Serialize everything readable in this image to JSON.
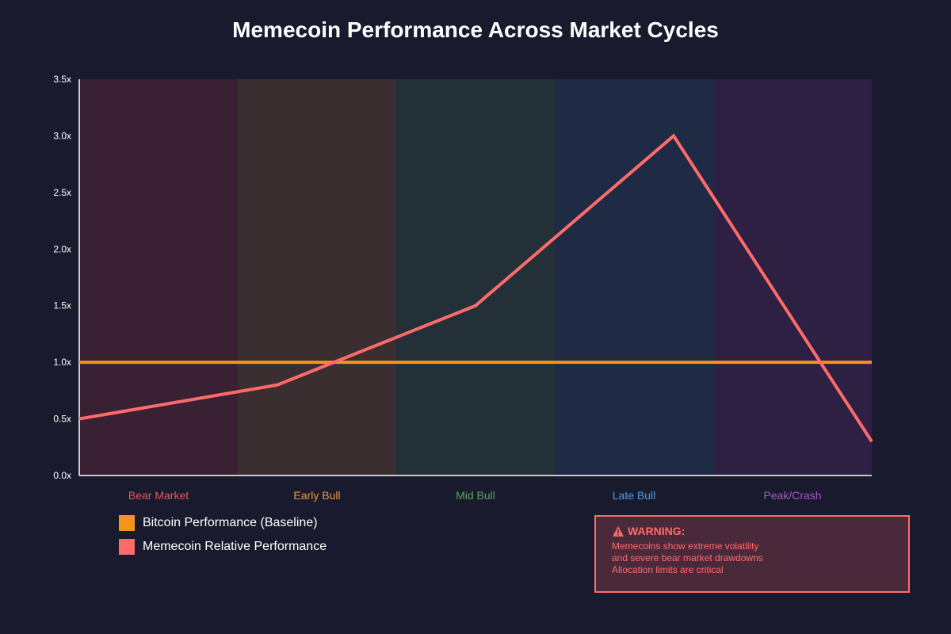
{
  "chart_data": {
    "type": "line",
    "title": "Memecoin Performance Across Market Cycles",
    "categories": [
      "Bear Market",
      "Early Bull",
      "Mid Bull",
      "Late Bull",
      "Peak/Crash"
    ],
    "category_colors": [
      "#e05a5a",
      "#e69a3a",
      "#5aa65a",
      "#4a9fe0",
      "#a35ac4"
    ],
    "band_colors": [
      "#3a2033",
      "#3a2e30",
      "#243038",
      "#1f2a45",
      "#2e2042"
    ],
    "x": [
      0,
      0.5,
      1,
      1.5,
      2,
      2.5,
      3,
      3.5,
      4,
      4.5,
      5
    ],
    "series": [
      {
        "name": "Bitcoin Performance (Baseline)",
        "color": "#f7931a",
        "x": [
          0,
          5
        ],
        "values": [
          1.0,
          1.0
        ]
      },
      {
        "name": "Memecoin Relative Performance",
        "color": "#ff6b6b",
        "x": [
          0,
          1.25,
          2.5,
          3.75,
          5
        ],
        "values": [
          0.5,
          0.8,
          1.5,
          3.0,
          0.3
        ]
      }
    ],
    "yticks": [
      "0.0x",
      "0.5x",
      "1.0x",
      "1.5x",
      "2.0x",
      "2.5x",
      "3.0x",
      "3.5x"
    ],
    "ylim": [
      0,
      3.5
    ],
    "xlim": [
      0,
      5
    ],
    "grid": false,
    "legend_position": "bottom-left"
  },
  "legend": {
    "items": [
      {
        "label": "Bitcoin Performance (Baseline)",
        "color": "#f7931a"
      },
      {
        "label": "Memecoin Relative Performance",
        "color": "#ff6b6b"
      }
    ]
  },
  "warning": {
    "icon": "warning-icon",
    "title": "WARNING:",
    "lines": [
      "Memecoins show extreme volatility",
      "and severe bear market drawdowns",
      "Allocation limits are critical"
    ]
  }
}
